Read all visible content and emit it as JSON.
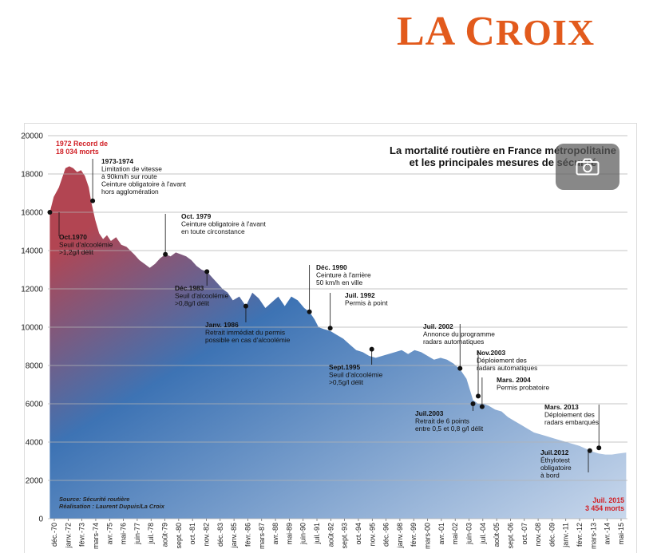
{
  "logo": {
    "text": "LA CROIX",
    "color": "#e25a1c"
  },
  "camera_icon": "camera-icon",
  "chart_data": {
    "type": "area",
    "title": "La mortalité routière en France métropolitaine et les principales mesures de sécurité",
    "title_lines": [
      "La mortalité routière en France métropolitaine",
      "et les principales mesures de sécurité"
    ],
    "ylim": [
      0,
      20000
    ],
    "yticks": [
      "0",
      "2000",
      "4000",
      "6000",
      "8000",
      "10000",
      "12000",
      "14000",
      "16000",
      "18000",
      "20000"
    ],
    "xticks": [
      "déc.-70",
      "janv.-72",
      "févr.-73",
      "mars-74",
      "avr.-75",
      "mai-76",
      "juin-77",
      "juil.-78",
      "août-79",
      "sept.-80",
      "oct.-81",
      "nov.-82",
      "déc.-83",
      "janv.-85",
      "févr.-86",
      "mars-87",
      "avr.-88",
      "mai-89",
      "juin-90",
      "juil.-91",
      "août-92",
      "sept.-93",
      "oct.-94",
      "nov.-95",
      "déc.-96",
      "janv.-98",
      "févr.-99",
      "mars-00",
      "avr.-01",
      "mai-02",
      "juin-03",
      "juil.-04",
      "août-05",
      "sept.-06",
      "oct.-07",
      "nov.-08",
      "déc.-09",
      "janv.-11",
      "févr.-12",
      "mars-13",
      "avr.-14",
      "mai-15"
    ],
    "x": [
      1970.9,
      1971.2,
      1971.6,
      1971.9,
      1972.1,
      1972.4,
      1972.7,
      1973.0,
      1973.3,
      1973.6,
      1973.9,
      1974.1,
      1974.4,
      1974.7,
      1975.0,
      1975.3,
      1975.6,
      1976.0,
      1976.4,
      1976.8,
      1977.1,
      1977.4,
      1977.8,
      1978.2,
      1978.6,
      1979.0,
      1979.4,
      1979.8,
      1980.2,
      1980.6,
      1981.0,
      1981.4,
      1981.8,
      1982.2,
      1982.6,
      1983.0,
      1983.4,
      1983.8,
      1984.2,
      1984.6,
      1985.0,
      1985.5,
      1986.0,
      1986.5,
      1987.0,
      1987.5,
      1988.0,
      1988.5,
      1989.0,
      1989.5,
      1990.0,
      1990.5,
      1990.9,
      1991.3,
      1991.6,
      1992.0,
      1992.5,
      1993.0,
      1993.5,
      1994.0,
      1994.5,
      1995.0,
      1995.5,
      1996.0,
      1996.5,
      1997.0,
      1997.5,
      1998.0,
      1998.5,
      1999.0,
      1999.5,
      2000.0,
      2000.5,
      2001.0,
      2001.5,
      2002.0,
      2002.5,
      2003.0,
      2003.5,
      2003.9,
      2004.3,
      2004.7,
      2005.2,
      2005.7,
      2006.2,
      2006.7,
      2007.2,
      2007.7,
      2008.2,
      2008.7,
      2009.2,
      2009.7,
      2010.2,
      2010.7,
      2011.2,
      2011.7,
      2012.2,
      2012.7,
      2013.2,
      2013.7,
      2014.2,
      2014.7,
      2015.3
    ],
    "y": [
      16000,
      16800,
      17300,
      17900,
      18300,
      18400,
      18300,
      18100,
      18200,
      17900,
      17300,
      16500,
      15600,
      14900,
      14600,
      14800,
      14500,
      14700,
      14300,
      14200,
      14000,
      13800,
      13500,
      13300,
      13100,
      13300,
      13600,
      13800,
      13700,
      13900,
      13800,
      13700,
      13500,
      13200,
      13000,
      12900,
      12600,
      12300,
      12000,
      11800,
      11400,
      11600,
      11100,
      11800,
      11500,
      11000,
      11300,
      11600,
      11100,
      11600,
      11400,
      11000,
      10800,
      10400,
      10000,
      9900,
      9800,
      9600,
      9400,
      9100,
      8800,
      8700,
      8500,
      8400,
      8500,
      8600,
      8700,
      8800,
      8600,
      8800,
      8700,
      8500,
      8300,
      8400,
      8300,
      8100,
      7800,
      7300,
      6200,
      6000,
      6000,
      5900,
      5700,
      5600,
      5300,
      5100,
      4900,
      4700,
      4500,
      4400,
      4300,
      4200,
      4100,
      4000,
      3900,
      3800,
      3650,
      3500,
      3400,
      3350,
      3350,
      3400,
      3454
    ],
    "annotations": [
      {
        "x": 1970.9,
        "y": 16000,
        "lines": [
          "Oct.1970",
          "Seuil d'alcoolémie",
          ">1,2g/l délit"
        ],
        "red": false
      },
      {
        "x": 1974.2,
        "y": 16600,
        "lines": [
          "1973-1974",
          "Limitation de vitesse",
          "à 90km/h sur route",
          "Ceinture obligatoire à l'avant",
          "hors agglomération"
        ],
        "red": false
      },
      {
        "x": 1979.8,
        "y": 13800,
        "lines": [
          "Oct. 1979",
          "Ceinture obligatoire à l'avant",
          "en toute circonstance"
        ],
        "red": false
      },
      {
        "x": 1983.0,
        "y": 12900,
        "lines": [
          "Déc.1983",
          "Seuil d'alcoolémie",
          ">0,8g/l délit"
        ],
        "red": false
      },
      {
        "x": 1986.0,
        "y": 11100,
        "lines": [
          "Janv. 1986",
          "Retrait immédiat du permis",
          "possible en cas d'alcoolémie"
        ],
        "red": false
      },
      {
        "x": 1990.9,
        "y": 10800,
        "lines": [
          "Déc. 1990",
          "Ceinture à l'arrière",
          "50 km/h en ville"
        ],
        "red": false
      },
      {
        "x": 1992.5,
        "y": 9950,
        "lines": [
          "Juil. 1992",
          "Permis à point"
        ],
        "red": false
      },
      {
        "x": 1995.7,
        "y": 8850,
        "lines": [
          "Sept.1995",
          "Seuil d'alcoolémie",
          ">0,5g/l délit"
        ],
        "red": false
      },
      {
        "x": 2002.5,
        "y": 7850,
        "lines": [
          "Juil. 2002",
          "Annonce du programme",
          "radars automatiques"
        ],
        "red": false
      },
      {
        "x": 2003.9,
        "y": 6400,
        "lines": [
          "Nov.2003",
          "Déploiement des",
          "radars automatiques"
        ],
        "red": false
      },
      {
        "x": 2003.5,
        "y": 6000,
        "lines": [
          "Juil.2003",
          "Retrait de 6 points",
          "entre 0,5 et 0,8 g/l délit"
        ],
        "red": false
      },
      {
        "x": 2004.2,
        "y": 5850,
        "lines": [
          "Mars. 2004",
          "Permis probatoire"
        ],
        "red": false
      },
      {
        "x": 2012.5,
        "y": 3550,
        "lines": [
          "Juil.2012",
          "Éthylotest",
          "obligatoire",
          "à bord"
        ],
        "red": false
      },
      {
        "x": 2013.2,
        "y": 3700,
        "lines": [
          "Mars. 2013",
          "Déploiement des",
          "radars embarqués"
        ],
        "red": false
      }
    ],
    "record_label": [
      "1972 Record de",
      "18 034 morts"
    ],
    "end_label": [
      "Juil. 2015",
      "3 454 morts"
    ],
    "source": [
      "Source: Sécurité routière",
      "Réalisation : Laurent Dupuis/La Croix"
    ],
    "colors": {
      "peak": "#b24552",
      "mid": "#3d73b4",
      "low": "#c9d8ec",
      "label": "#d12026",
      "grid": "#b3b3b3"
    },
    "grid": true
  }
}
